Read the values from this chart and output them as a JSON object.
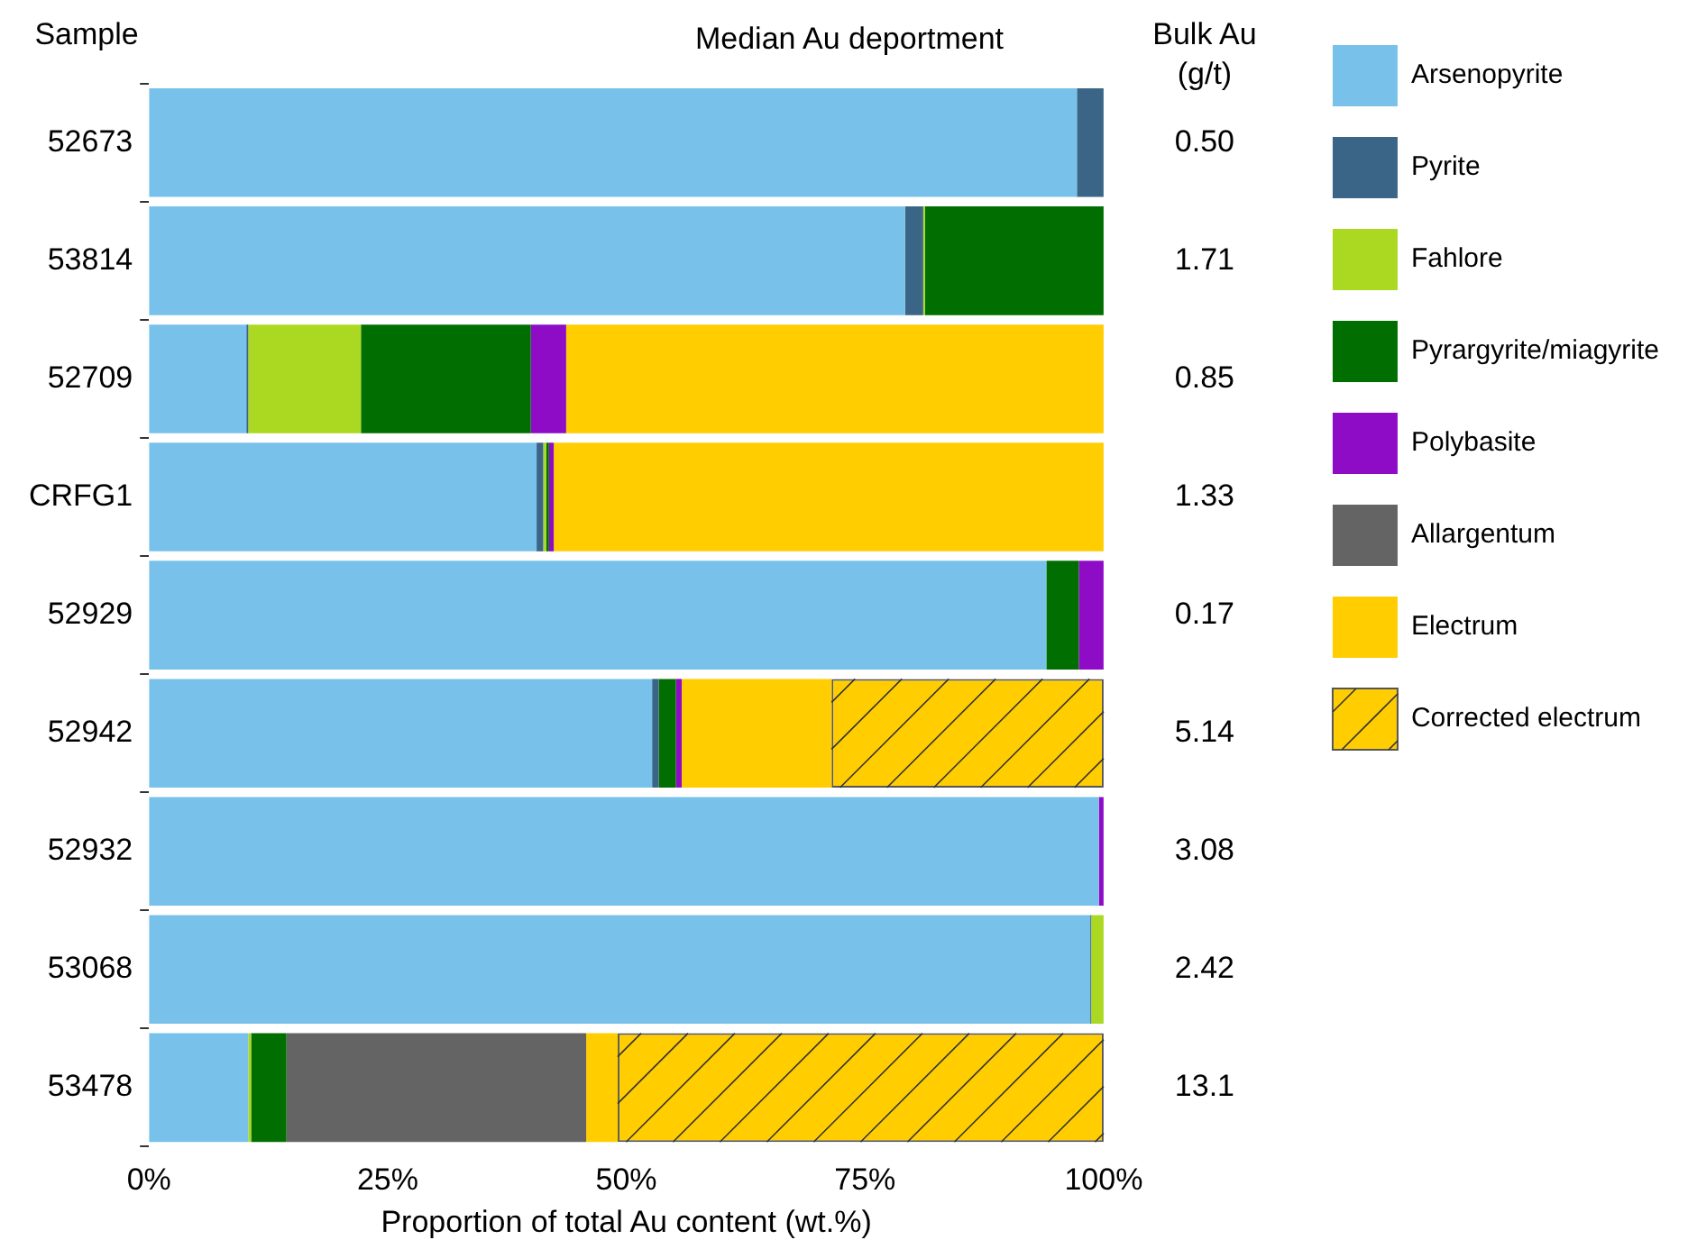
{
  "chart_data": {
    "type": "bar",
    "orientation": "horizontal",
    "stacked": true,
    "title": "Median Au deportment",
    "ylabel": "Sample",
    "xlabel": "Proportion of total Au content (wt.%)",
    "categories": [
      "52673",
      "53814",
      "52709",
      "CRFG1",
      "52929",
      "52942",
      "52932",
      "53068",
      "53478"
    ],
    "series": [
      {
        "name": "Arsenopyrite",
        "color": "#78c1ea",
        "values": [
          97.2,
          79.2,
          10.2,
          40.6,
          94.0,
          52.7,
          99.5,
          98.6,
          10.4
        ]
      },
      {
        "name": "Pyrite",
        "color": "#3b6587",
        "values": [
          2.8,
          1.9,
          0.2,
          0.7,
          null,
          0.7,
          null,
          0.1,
          null
        ]
      },
      {
        "name": "Fahlore",
        "color": "#abd922",
        "values": [
          null,
          0.2,
          11.8,
          0.3,
          null,
          null,
          null,
          1.3,
          0.3
        ]
      },
      {
        "name": "Pyrargyrite/miagyrite",
        "color": "#006e00",
        "values": [
          null,
          18.7,
          17.8,
          0.3,
          3.4,
          1.8,
          null,
          null,
          3.7
        ]
      },
      {
        "name": "Polybasite",
        "color": "#8e0cc6",
        "values": [
          null,
          null,
          3.7,
          0.5,
          2.6,
          0.6,
          0.5,
          null,
          null
        ]
      },
      {
        "name": "Allargentum",
        "color": "#646464",
        "values": [
          null,
          null,
          null,
          null,
          null,
          null,
          null,
          null,
          31.4
        ]
      },
      {
        "name": "Electrum",
        "color": "#ffcd00",
        "values": [
          null,
          null,
          56.3,
          57.6,
          null,
          15.7,
          null,
          null,
          3.3
        ]
      },
      {
        "name": "Corrected electrum",
        "color": "#ffcd00",
        "values": [
          null,
          null,
          null,
          null,
          null,
          28.5,
          null,
          null,
          50.9
        ]
      }
    ],
    "xlim": [
      0,
      100
    ],
    "xticks": [
      {
        "value": 0,
        "label": "0%"
      },
      {
        "value": 25,
        "label": "25%"
      },
      {
        "value": 50,
        "label": "50%"
      },
      {
        "value": 75,
        "label": "75%"
      },
      {
        "value": 100,
        "label": "100%"
      }
    ],
    "annotations": [
      "Bulk Au\n(g/t)",
      "0.50",
      "1.71",
      "0.85",
      "1.33",
      "0.17",
      "5.14",
      "3.08",
      "2.42",
      "13.1"
    ],
    "legend": "top right",
    "grid": false
  }
}
